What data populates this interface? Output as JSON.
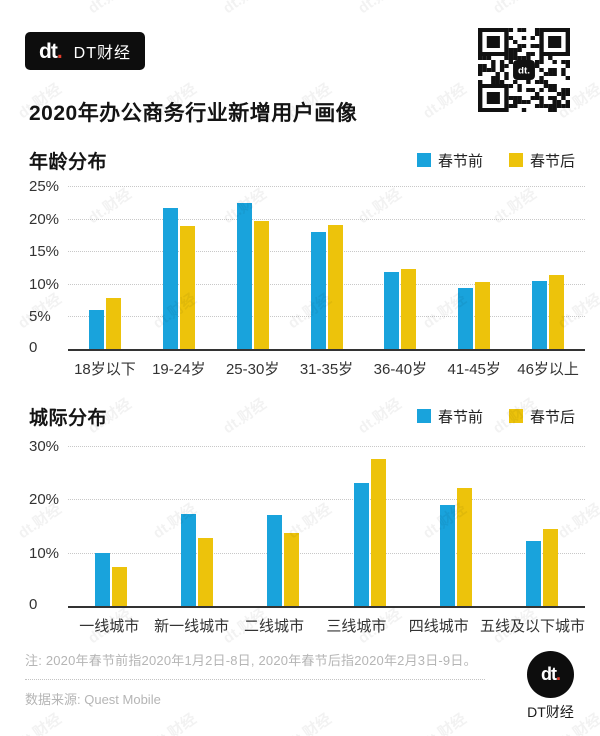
{
  "header": {
    "logo_mark": "dt",
    "logo_dot": ".",
    "logo_text": "DT财经",
    "title": "2020年办公商务行业新增用户画像"
  },
  "legend": {
    "items": [
      {
        "label": "春节前",
        "color": "#19A3DC"
      },
      {
        "label": "春节后",
        "color": "#EDC30B"
      }
    ]
  },
  "colors": {
    "pre_spring_festival": "#19A3DC",
    "post_spring_festival": "#EDC30B",
    "logo_red": "#E13C2B",
    "grid": "#C8C8C8",
    "axis": "#333333",
    "muted_text": "#B5B5B5"
  },
  "watermark": "dt.财经",
  "chart_data": [
    {
      "type": "bar",
      "title": "年龄分布",
      "categories": [
        "18岁以下",
        "19-24岁",
        "25-30岁",
        "31-35岁",
        "36-40岁",
        "41-45岁",
        "46岁以上"
      ],
      "series": [
        {
          "name": "春节前",
          "color": "#19A3DC",
          "values": [
            6.0,
            21.7,
            22.4,
            18.0,
            11.8,
            9.3,
            10.4
          ]
        },
        {
          "name": "春节后",
          "color": "#EDC30B",
          "values": [
            7.8,
            18.8,
            19.7,
            19.0,
            12.3,
            10.3,
            11.3
          ]
        }
      ],
      "xlabel": "",
      "ylabel": "",
      "ylim": [
        0,
        25
      ],
      "yticks": [
        25,
        20,
        15,
        10,
        5,
        0
      ],
      "ytick_labels": [
        "25%",
        "20%",
        "15%",
        "10%",
        "5%",
        "0"
      ],
      "grid": "dotted-horizontal",
      "legend_position": "top-right"
    },
    {
      "type": "bar",
      "title": "城际分布",
      "categories": [
        "一线城市",
        "新一线城市",
        "二线城市",
        "三线城市",
        "四线城市",
        "五线及以下城市"
      ],
      "series": [
        {
          "name": "春节前",
          "color": "#19A3DC",
          "values": [
            10.0,
            17.3,
            17.0,
            23.0,
            18.9,
            12.2
          ]
        },
        {
          "name": "春节后",
          "color": "#EDC30B",
          "values": [
            7.4,
            12.8,
            13.7,
            27.6,
            22.1,
            14.4
          ]
        }
      ],
      "xlabel": "",
      "ylabel": "",
      "ylim": [
        0,
        30
      ],
      "yticks": [
        30,
        20,
        10,
        0
      ],
      "ytick_labels": [
        "30%",
        "20%",
        "10%",
        "0"
      ],
      "grid": "dotted-horizontal",
      "legend_position": "top-right"
    }
  ],
  "footer": {
    "note": "注: 2020年春节前指2020年1月2日-8日, 2020年春节后指2020年2月3日-9日。",
    "source": "数据来源: Quest Mobile",
    "logo_mark": "dt",
    "logo_dot": ".",
    "logo_text": "DT财经"
  }
}
